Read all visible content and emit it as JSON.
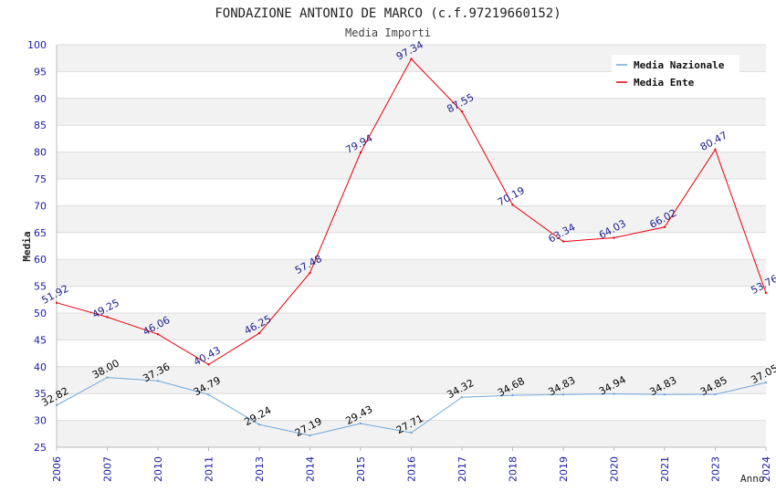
{
  "chart_data": {
    "type": "line",
    "title": "FONDAZIONE ANTONIO DE MARCO (c.f.97219660152)",
    "subtitle": "Media Importi",
    "xlabel": "Anno",
    "ylabel": "Media",
    "ylim": [
      25,
      100
    ],
    "yticks": [
      25,
      30,
      35,
      40,
      45,
      50,
      55,
      60,
      65,
      70,
      75,
      80,
      85,
      90,
      95,
      100
    ],
    "grid": true,
    "legend": "top-right",
    "categories": [
      "2006",
      "2007",
      "2010",
      "2011",
      "2013",
      "2014",
      "2015",
      "2016",
      "2017",
      "2018",
      "2019",
      "2020",
      "2021",
      "2023",
      "2024"
    ],
    "series": [
      {
        "name": "Media Nazionale",
        "color": "#6fa8dc",
        "label_color": "#000000",
        "values": [
          32.82,
          38.0,
          37.36,
          34.79,
          29.24,
          27.19,
          29.43,
          27.71,
          34.32,
          34.68,
          34.83,
          34.94,
          34.83,
          34.85,
          37.05
        ]
      },
      {
        "name": "Media Ente",
        "color": "#e8000b",
        "label_color": "#1a1a8c",
        "values": [
          51.92,
          49.25,
          46.06,
          40.43,
          46.25,
          57.48,
          79.94,
          97.34,
          87.55,
          70.19,
          63.34,
          64.03,
          66.02,
          80.47,
          53.76
        ]
      }
    ]
  }
}
